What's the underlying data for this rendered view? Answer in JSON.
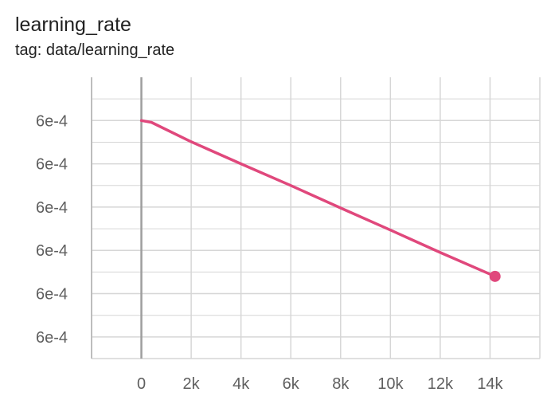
{
  "header": {
    "title": "learning_rate",
    "subtitle": "tag: data/learning_rate"
  },
  "colors": {
    "series": "#e0487c",
    "grid": "#d6d6d6",
    "axis": "#9e9e9e",
    "text": "#212121",
    "tick_text": "#5f5f5f"
  },
  "chart_data": {
    "type": "line",
    "title": "learning_rate",
    "subtitle": "tag: data/learning_rate",
    "xlabel": "",
    "ylabel": "",
    "xlim": [
      -2000,
      16000
    ],
    "ylim": [
      -0.5,
      6.0
    ],
    "x_ticks": [
      0,
      2000,
      4000,
      6000,
      8000,
      10000,
      12000,
      14000
    ],
    "x_tick_labels": [
      "0",
      "2k",
      "4k",
      "6k",
      "8k",
      "10k",
      "12k",
      "14k"
    ],
    "y_ticks": [
      0,
      1,
      2,
      3,
      4,
      5
    ],
    "y_tick_labels": [
      "6e-4",
      "6e-4",
      "6e-4",
      "6e-4",
      "6e-4",
      "6e-4"
    ],
    "grid": true,
    "series": [
      {
        "x": [
          0,
          400,
          2000,
          4000,
          6000,
          8000,
          10000,
          12000,
          14200
        ],
        "y": [
          5.0,
          4.96,
          4.51,
          4.0,
          3.5,
          2.98,
          2.47,
          1.95,
          1.4
        ]
      }
    ],
    "last_point": {
      "x": 14200,
      "y": 1.4
    }
  }
}
